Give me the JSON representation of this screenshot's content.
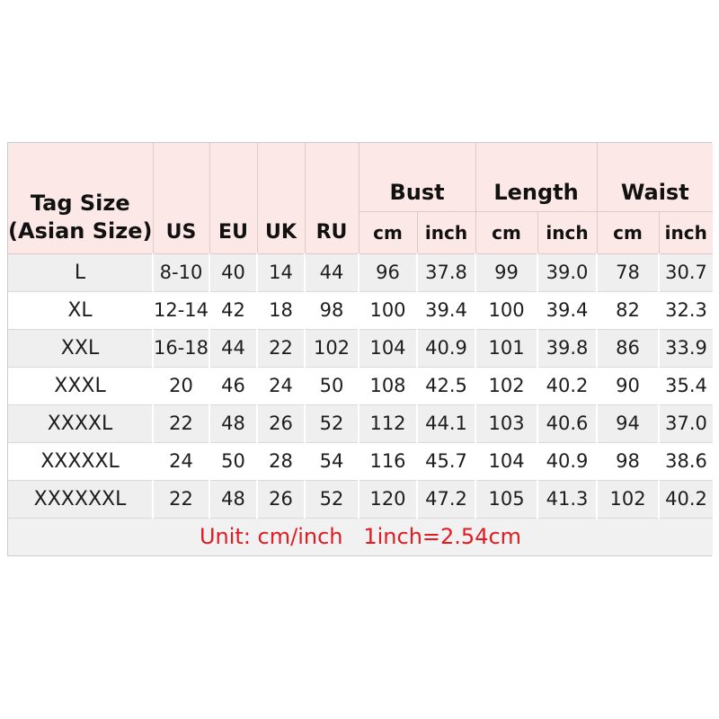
{
  "chart_data": {
    "type": "table",
    "header": {
      "tag_line1": "Tag Size",
      "tag_line2": "(Asian Size)",
      "region_cols": [
        "US",
        "EU",
        "UK",
        "RU"
      ],
      "groups": [
        {
          "label": "Bust",
          "sub": [
            "cm",
            "inch"
          ]
        },
        {
          "label": "Length",
          "sub": [
            "cm",
            "inch"
          ]
        },
        {
          "label": "Waist",
          "sub": [
            "cm",
            "inch"
          ]
        }
      ],
      "flat_columns": [
        "Tag Size (Asian Size)",
        "US",
        "EU",
        "UK",
        "RU",
        "Bust cm",
        "Bust inch",
        "Length cm",
        "Length inch",
        "Waist cm",
        "Waist inch"
      ]
    },
    "rows": [
      [
        "L",
        "8-10",
        "40",
        "14",
        "44",
        "96",
        "37.8",
        "99",
        "39.0",
        "78",
        "30.7"
      ],
      [
        "XL",
        "12-14",
        "42",
        "18",
        "98",
        "100",
        "39.4",
        "100",
        "39.4",
        "82",
        "32.3"
      ],
      [
        "XXL",
        "16-18",
        "44",
        "22",
        "102",
        "104",
        "40.9",
        "101",
        "39.8",
        "86",
        "33.9"
      ],
      [
        "XXXL",
        "20",
        "46",
        "24",
        "50",
        "108",
        "42.5",
        "102",
        "40.2",
        "90",
        "35.4"
      ],
      [
        "XXXXL",
        "22",
        "48",
        "26",
        "52",
        "112",
        "44.1",
        "103",
        "40.6",
        "94",
        "37.0"
      ],
      [
        "XXXXXL",
        "24",
        "50",
        "28",
        "54",
        "116",
        "45.7",
        "104",
        "40.9",
        "98",
        "38.6"
      ],
      [
        "XXXXXXL",
        "22",
        "48",
        "26",
        "52",
        "120",
        "47.2",
        "105",
        "41.3",
        "102",
        "40.2"
      ]
    ],
    "note": "Unit: cm/inch   1inch=2.54cm"
  },
  "colors": {
    "header_pink": "#fce8e6",
    "row_gray": "#efefef",
    "row_white": "#ffffff",
    "footer_gray": "#f1f1f1",
    "note_red": "#e01b22",
    "grid_line_header": "#d9cbc8",
    "grid_line_body": "#d9d9d9"
  }
}
